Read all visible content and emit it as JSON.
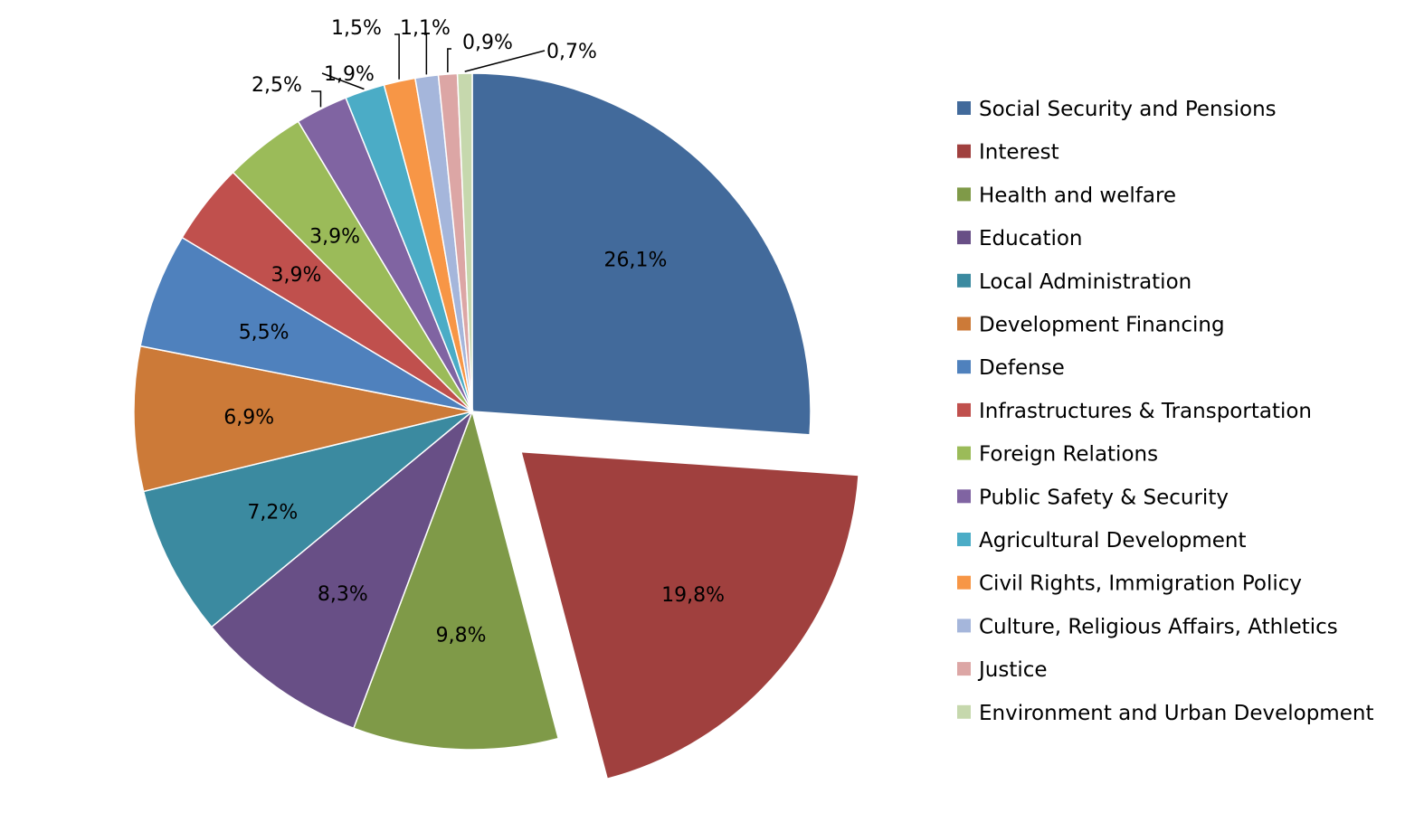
{
  "chart_data": {
    "type": "pie",
    "title": "",
    "legend_position": "right",
    "exploded_slice": "Interest",
    "slices": [
      {
        "name": "Social Security and Pensions",
        "value": 26.1,
        "label": "26,1%",
        "color": "#426a9b"
      },
      {
        "name": "Interest",
        "value": 19.8,
        "label": "19,8%",
        "color": "#a0403e"
      },
      {
        "name": "Health and welfare",
        "value": 9.8,
        "label": "9,8%",
        "color": "#7f9a48"
      },
      {
        "name": "Education",
        "value": 8.3,
        "label": "8,3%",
        "color": "#684f86"
      },
      {
        "name": "Local Administration",
        "value": 7.2,
        "label": "7,2%",
        "color": "#3b8aa0"
      },
      {
        "name": "Development Financing",
        "value": 6.9,
        "label": "6,9%",
        "color": "#cc7a38"
      },
      {
        "name": "Defense",
        "value": 5.5,
        "label": "5,5%",
        "color": "#4f81bd"
      },
      {
        "name": "Infrastructures & Transportation",
        "value": 3.9,
        "label": "3,9%",
        "color": "#c0504d"
      },
      {
        "name": "Foreign Relations",
        "value": 3.9,
        "label": "3,9%",
        "color": "#9bbb59"
      },
      {
        "name": "Public Safety & Security",
        "value": 2.5,
        "label": "2,5%",
        "color": "#8064a2"
      },
      {
        "name": "Agricultural Development",
        "value": 1.9,
        "label": "1,9%",
        "color": "#4bacc6"
      },
      {
        "name": "Civil Rights, Immigration Policy",
        "value": 1.5,
        "label": "1,5%",
        "color": "#f79646"
      },
      {
        "name": "Culture, Religious Affairs, Athletics",
        "value": 1.1,
        "label": "1,1%",
        "color": "#a5b6db"
      },
      {
        "name": "Justice",
        "value": 0.9,
        "label": "0,9%",
        "color": "#dca6a5"
      },
      {
        "name": "Environment and Urban Development",
        "value": 0.7,
        "label": "0,7%",
        "color": "#c6d8ad"
      }
    ]
  }
}
